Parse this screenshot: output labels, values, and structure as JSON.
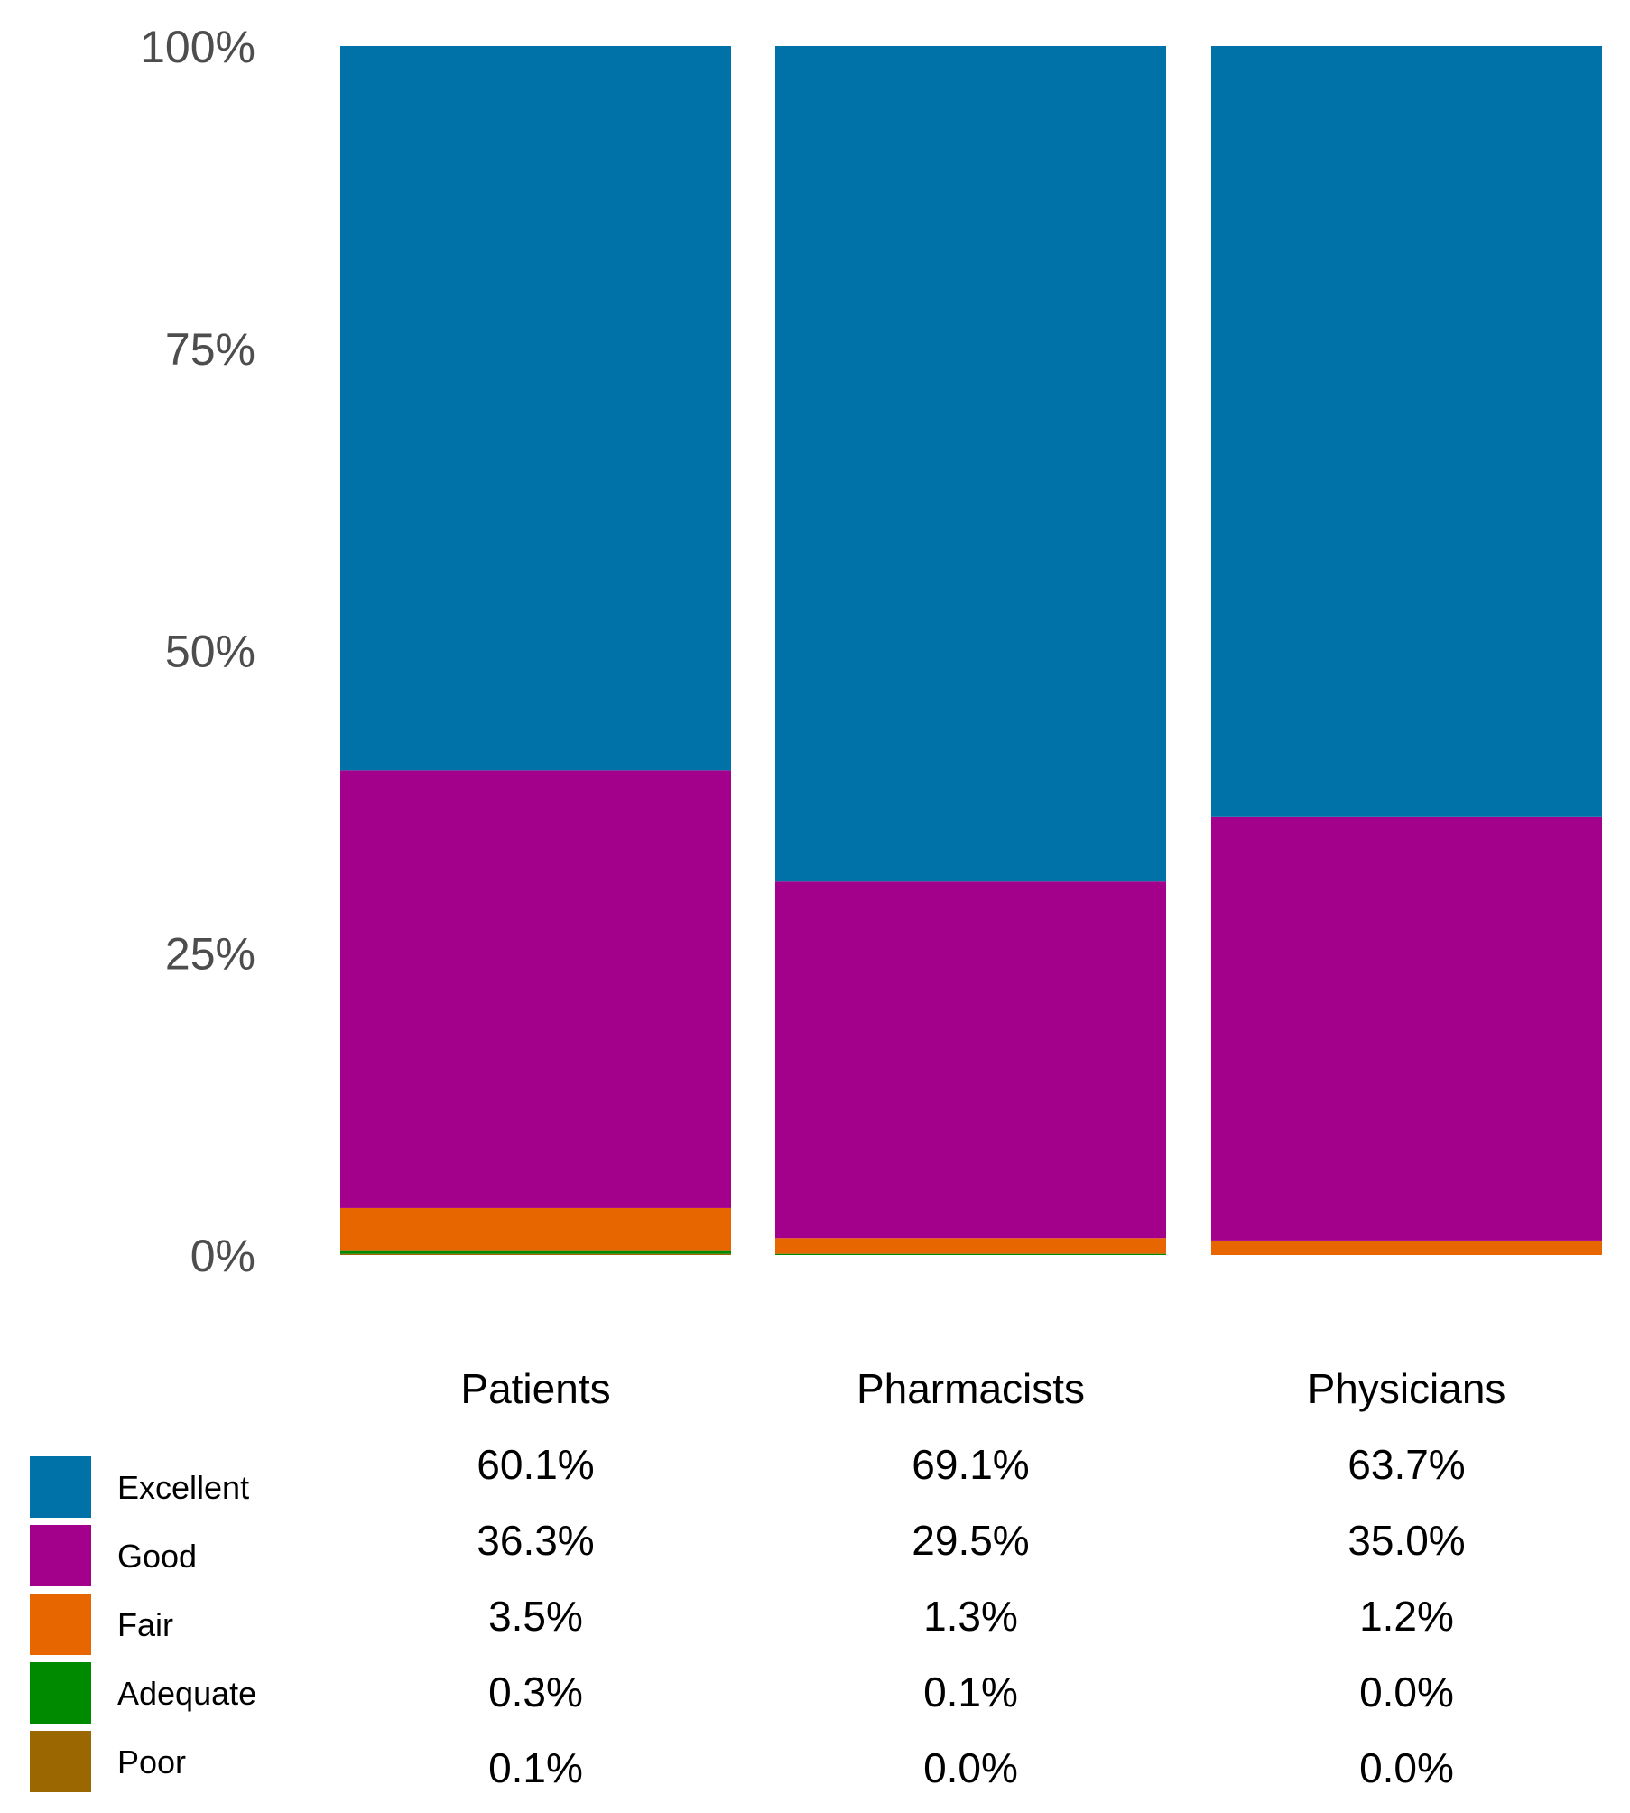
{
  "chart_data": {
    "type": "bar",
    "stacked": true,
    "orientation": "vertical",
    "categories": [
      "Patients",
      "Pharmacists",
      "Physicians"
    ],
    "y_ticks": [
      "0%",
      "25%",
      "50%",
      "75%",
      "100%"
    ],
    "ylim": [
      0,
      100
    ],
    "grid": false,
    "legend_position": "bottom-left",
    "series": [
      {
        "name": "Excellent",
        "color": "#0072A7",
        "values": [
          60.1,
          69.1,
          63.7
        ],
        "labels": [
          "60.1%",
          "69.1%",
          "63.7%"
        ]
      },
      {
        "name": "Good",
        "color": "#A3008C",
        "values": [
          36.3,
          29.5,
          35.0
        ],
        "labels": [
          "36.3%",
          "29.5%",
          "35.0%"
        ]
      },
      {
        "name": "Fair",
        "color": "#E86600",
        "values": [
          3.5,
          1.3,
          1.2
        ],
        "labels": [
          "3.5%",
          "1.3%",
          "1.2%"
        ]
      },
      {
        "name": "Adequate",
        "color": "#008A00",
        "values": [
          0.3,
          0.1,
          0.0
        ],
        "labels": [
          "0.3%",
          "0.1%",
          "0.0%"
        ]
      },
      {
        "name": "Poor",
        "color": "#9A6700",
        "values": [
          0.1,
          0.0,
          0.0
        ],
        "labels": [
          "0.1%",
          "0.0%",
          "0.0%"
        ]
      }
    ]
  }
}
